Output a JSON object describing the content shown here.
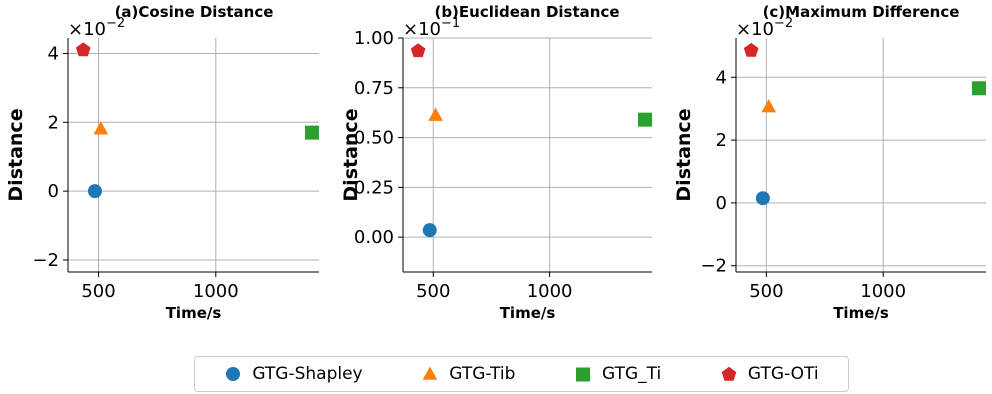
{
  "chart_data": [
    {
      "type": "scatter",
      "title": "(a)Cosine Distance",
      "xlabel": "Time/s",
      "ylabel": "Distance",
      "y_multiplier": "×10",
      "y_exponent": "−2",
      "xlim": [
        370,
        1440
      ],
      "ylim": [
        -2.35,
        4.45
      ],
      "xticks": [
        500,
        1000
      ],
      "yticks": [
        -2,
        0,
        2,
        4
      ],
      "ytick_labels": [
        "−2",
        "0",
        "2",
        "4"
      ],
      "grid": true,
      "points": [
        {
          "series": "GTG-Shapley",
          "x": 485,
          "y": 0.0
        },
        {
          "series": "GTG-Tib",
          "x": 510,
          "y": 1.8
        },
        {
          "series": "GTG_Ti",
          "x": 1410,
          "y": 1.7
        },
        {
          "series": "GTG-OTi",
          "x": 435,
          "y": 4.1
        }
      ]
    },
    {
      "type": "scatter",
      "title": "(b)Euclidean Distance",
      "xlabel": "Time/s",
      "ylabel": "Distance",
      "y_multiplier": "×10",
      "y_exponent": "−1",
      "xlim": [
        370,
        1440
      ],
      "ylim": [
        -0.175,
        1.0
      ],
      "xticks": [
        500,
        1000
      ],
      "yticks": [
        0.0,
        0.25,
        0.5,
        0.75,
        1.0
      ],
      "ytick_labels": [
        "0.00",
        "0.25",
        "0.50",
        "0.75",
        "1.00"
      ],
      "grid": true,
      "points": [
        {
          "series": "GTG-Shapley",
          "x": 485,
          "y": 0.035
        },
        {
          "series": "GTG-Tib",
          "x": 510,
          "y": 0.61
        },
        {
          "series": "GTG_Ti",
          "x": 1410,
          "y": 0.59
        },
        {
          "series": "GTG-OTi",
          "x": 435,
          "y": 0.935
        }
      ]
    },
    {
      "type": "scatter",
      "title": "(c)Maximum Difference",
      "xlabel": "Time/s",
      "ylabel": "Distance",
      "y_multiplier": "×10",
      "y_exponent": "−2",
      "xlim": [
        370,
        1440
      ],
      "ylim": [
        -2.2,
        5.25
      ],
      "xticks": [
        500,
        1000
      ],
      "yticks": [
        -2,
        0,
        2,
        4
      ],
      "ytick_labels": [
        "−2",
        "0",
        "2",
        "4"
      ],
      "grid": true,
      "points": [
        {
          "series": "GTG-Shapley",
          "x": 485,
          "y": 0.15
        },
        {
          "series": "GTG-Tib",
          "x": 510,
          "y": 3.05
        },
        {
          "series": "GTG_Ti",
          "x": 1410,
          "y": 3.65
        },
        {
          "series": "GTG-OTi",
          "x": 435,
          "y": 4.85
        }
      ]
    }
  ],
  "legend": {
    "placement": "bottom-center",
    "items": [
      {
        "name": "GTG-Shapley",
        "marker": "circle",
        "color": "#1f77b4"
      },
      {
        "name": "GTG-Tib",
        "marker": "triangle",
        "color": "#ff7f0e"
      },
      {
        "name": "GTG_Ti",
        "marker": "square",
        "color": "#2ca02c"
      },
      {
        "name": "GTG-OTi",
        "marker": "pentagon",
        "color": "#d62728"
      }
    ]
  }
}
